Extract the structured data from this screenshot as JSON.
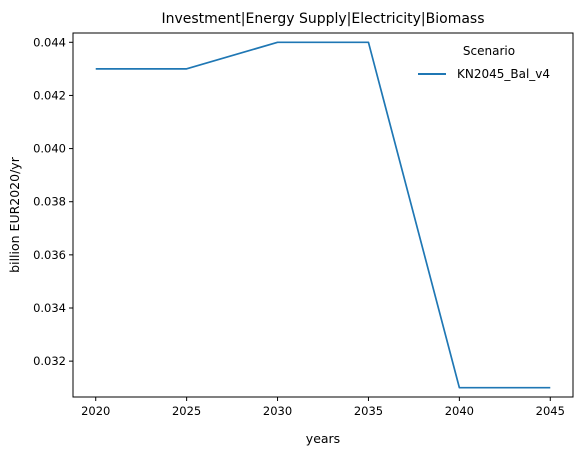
{
  "chart_data": {
    "type": "line",
    "title": "Investment|Energy Supply|Electricity|Biomass",
    "xlabel": "years",
    "ylabel": "billion EUR2020/yr",
    "x": [
      2020,
      2025,
      2030,
      2035,
      2040,
      2045
    ],
    "series": [
      {
        "name": "KN2045_Bal_v4",
        "values": [
          0.043,
          0.043,
          0.044,
          0.044,
          0.031,
          0.031
        ],
        "color": "#1f77b4"
      }
    ],
    "xlim": [
      2018.75,
      2046.25
    ],
    "ylim": [
      0.03065,
      0.04435
    ],
    "xticks": [
      2020,
      2025,
      2030,
      2035,
      2040,
      2045
    ],
    "yticks": [
      0.032,
      0.034,
      0.036,
      0.038,
      0.04,
      0.042,
      0.044
    ],
    "ytick_labels": [
      "0.032",
      "0.034",
      "0.036",
      "0.038",
      "0.040",
      "0.042",
      "0.044"
    ],
    "grid": false,
    "legend": {
      "title": "Scenario",
      "placement": "top-right"
    }
  }
}
